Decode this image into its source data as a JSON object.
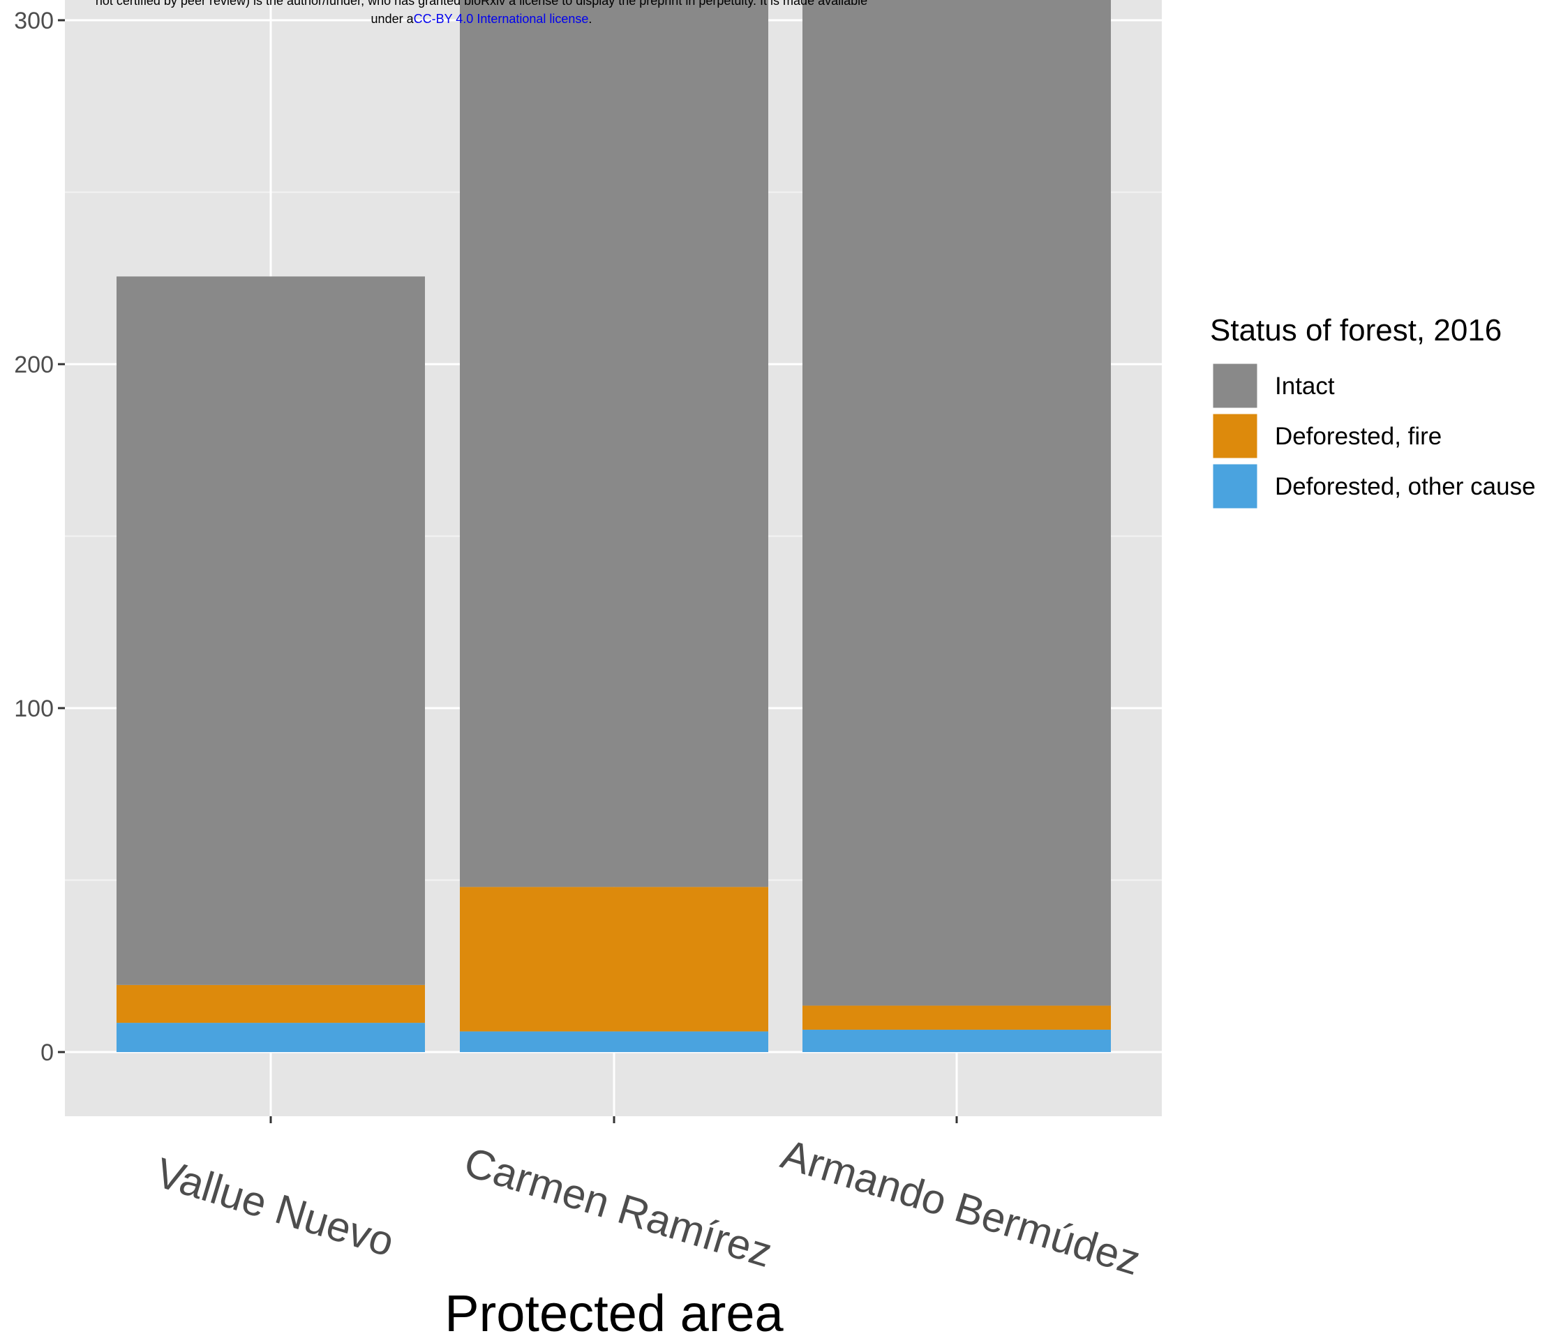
{
  "header_notice": {
    "line1": "not certified by peer review) is the author/funder, who has granted bioRxiv a license to display the preprint in perpetuity. It is made available",
    "line2_prefix": "under a",
    "license_link": "CC-BY 4.0 International license",
    "line2_suffix": "."
  },
  "chart_data": {
    "type": "bar",
    "stacked": true,
    "categories": [
      "Vallue Nuevo",
      "Carmen Ramírez",
      "Armando Bermúdez"
    ],
    "series": [
      {
        "name": "Deforested, other cause",
        "color": "#4aa3df",
        "values": [
          8.5,
          6,
          6.5
        ]
      },
      {
        "name": "Deforested, fire",
        "color": "#dd8a0c",
        "values": [
          11,
          42,
          7
        ]
      },
      {
        "name": "Intact",
        "color": "#898989",
        "values": [
          206,
          262,
          320
        ]
      }
    ],
    "legend": {
      "title": "Status of forest, 2016",
      "order": [
        "Intact",
        "Deforested, fire",
        "Deforested, other cause"
      ],
      "placement": "right"
    },
    "xlabel": "Protected area",
    "ylabel": "",
    "yticks": [
      0,
      100,
      200,
      300
    ],
    "ylim": [
      -18,
      310
    ],
    "grid": true,
    "panel_background": "#e5e5e5"
  }
}
